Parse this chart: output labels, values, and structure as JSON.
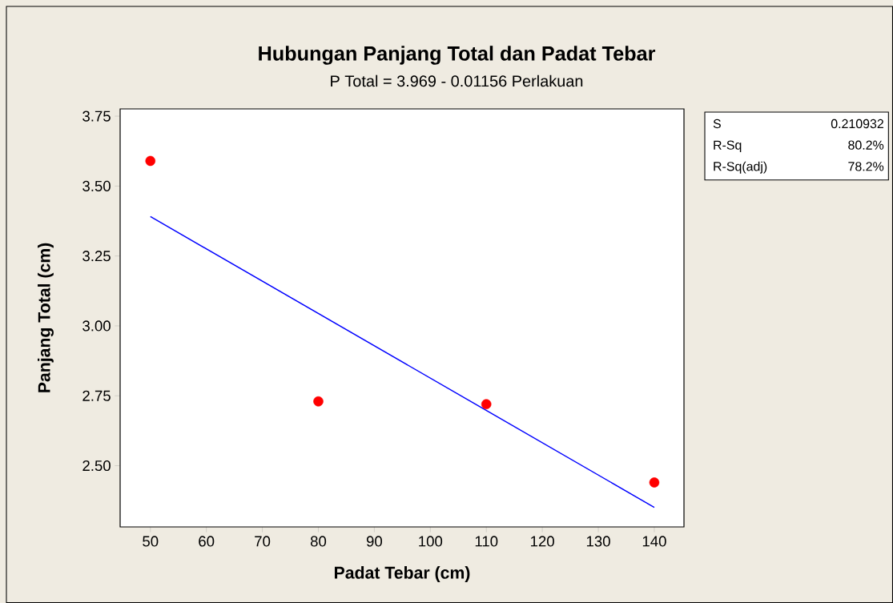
{
  "chart_data": {
    "type": "scatter",
    "title": "Hubungan Panjang Total dan Padat Tebar",
    "subtitle": "P Total = 3.969 - 0.01156 Perlakuan",
    "xlabel": "Padat Tebar (cm)",
    "ylabel": "Panjang Total (cm)",
    "series": [
      {
        "color": "#ff0000",
        "marker": "circle",
        "x": [
          50,
          80,
          110,
          140
        ],
        "values": [
          3.59,
          2.73,
          2.72,
          2.44
        ]
      },
      {
        "type": "line",
        "color": "#0000ff",
        "line_style": "solid",
        "x": [
          50,
          140
        ],
        "values": [
          3.391,
          2.351
        ]
      }
    ],
    "xlim": [
      44.6,
      145.3
    ],
    "ylim": [
      2.281,
      3.776
    ],
    "xticks": [
      50,
      60,
      70,
      80,
      90,
      100,
      110,
      120,
      130,
      140
    ],
    "yticks": [
      {
        "value": 2.5,
        "label": "2.50"
      },
      {
        "value": 2.75,
        "label": "2.75"
      },
      {
        "value": 3.0,
        "label": "3.00"
      },
      {
        "value": 3.25,
        "label": "3.25"
      },
      {
        "value": 3.5,
        "label": "3.50"
      },
      {
        "value": 3.75,
        "label": "3.75"
      }
    ],
    "annotations": [
      "S",
      "0.210932",
      "R-Sq",
      "80.2%",
      "R-Sq(adj)",
      "78.2%"
    ],
    "grid": false
  }
}
